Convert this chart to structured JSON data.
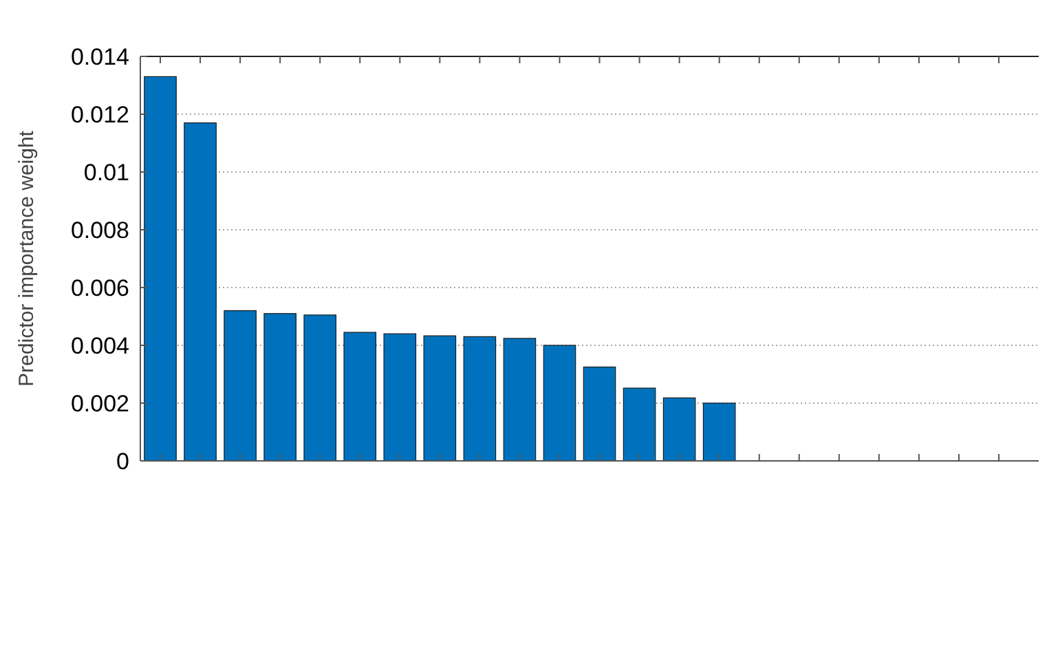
{
  "chart_data": {
    "type": "bar",
    "ylabel": "Predictor importance weight",
    "categories": [
      null,
      null,
      null,
      null,
      null,
      null,
      null,
      null,
      null,
      null,
      null,
      null,
      null,
      null,
      null,
      null,
      null,
      null,
      null,
      null,
      null,
      null
    ],
    "values": [
      0.0133,
      0.0117,
      0.0052,
      0.0051,
      0.00505,
      0.00445,
      0.0044,
      0.00433,
      0.0043,
      0.00424,
      0.004,
      0.00325,
      0.00252,
      0.00218,
      0.002,
      0,
      0,
      0,
      0,
      0,
      0,
      0
    ],
    "color": "#0072bd",
    "ylim": [
      0,
      0.014
    ],
    "yticks": [
      0,
      0.002,
      0.004,
      0.006,
      0.008,
      0.01,
      0.012,
      0.014
    ],
    "grid": "y"
  }
}
